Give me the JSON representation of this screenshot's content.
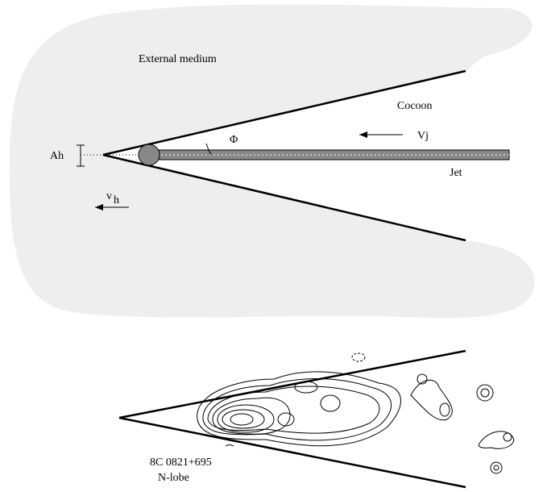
{
  "labels": {
    "external_medium": "External medium",
    "cocoon": "Cocoon",
    "phi": "Φ",
    "vj": "Vj",
    "ah": "Ah",
    "vh": {
      "main": "v",
      "sub": "h"
    },
    "jet": "Jet"
  },
  "observation": {
    "source": "8C 0821+695",
    "lobe": "N-lobe"
  }
}
